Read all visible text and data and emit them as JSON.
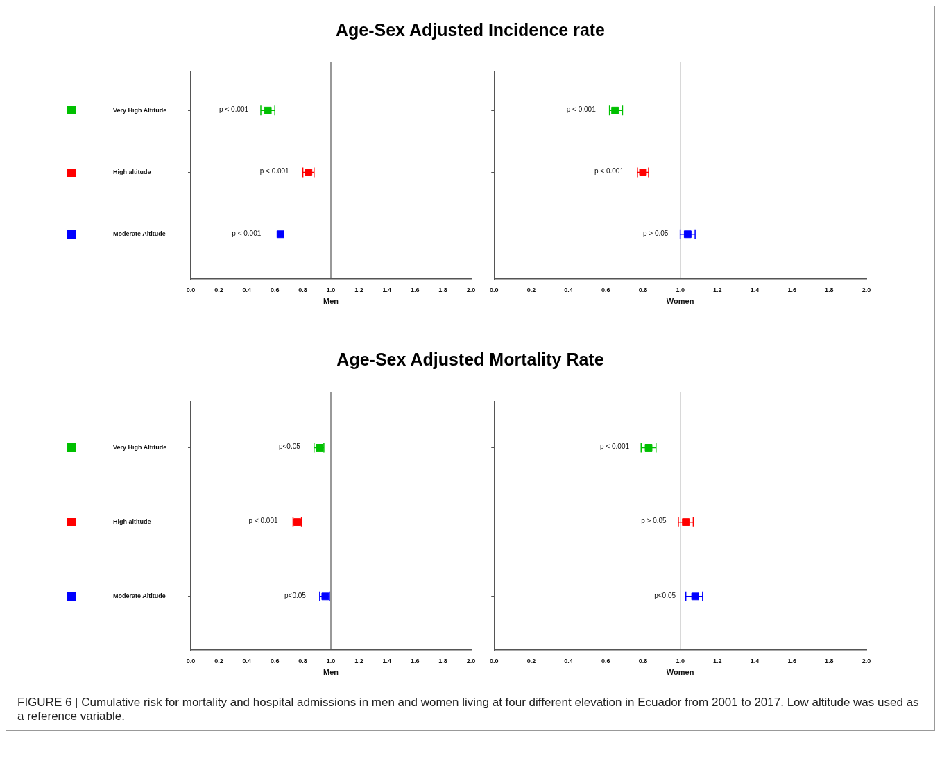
{
  "chart_data": [
    {
      "type": "scatter",
      "orientation": "horizontal",
      "title": "Age-Sex Adjusted Incidence rate",
      "xlabel": "Men",
      "categories": [
        "Very High Altitude",
        "High altitude",
        "Moderate Altitude"
      ],
      "values": [
        0.55,
        0.84,
        0.64
      ],
      "colors": [
        "#00c000",
        "#ff0000",
        "#0000ff"
      ],
      "errors": [
        [
          0.5,
          0.6
        ],
        [
          0.8,
          0.88
        ],
        null
      ],
      "marker": "square",
      "xlim": [
        0,
        2
      ],
      "xticks": [
        {
          "value": 0,
          "label": "0.0"
        },
        {
          "value": 0.2,
          "label": "0.2"
        },
        {
          "value": 0.4,
          "label": "0.4"
        },
        {
          "value": 0.6,
          "label": "0.6"
        },
        {
          "value": 0.8,
          "label": "0.8"
        },
        {
          "value": 1,
          "label": "1.0"
        },
        {
          "value": 1.2,
          "label": "1.2"
        },
        {
          "value": 1.4,
          "label": "1.4"
        },
        {
          "value": 1.6,
          "label": "1.6"
        },
        {
          "value": 1.8,
          "label": "1.8"
        },
        {
          "value": 2,
          "label": "2.0"
        }
      ],
      "ref_lines": [
        {
          "axis": "x",
          "value": 1,
          "color": "#555555"
        }
      ],
      "annotations": [
        {
          "text": "p < 0.001",
          "x": 0.55
        },
        {
          "text": "p < 0.001",
          "x": 0.84
        },
        {
          "text": "p < 0.001",
          "x": 0.64
        }
      ]
    },
    {
      "type": "scatter",
      "orientation": "horizontal",
      "xlabel": "Women",
      "categories": [
        null,
        null,
        null
      ],
      "values": [
        0.65,
        0.8,
        1.04
      ],
      "colors": [
        "#00c000",
        "#ff0000",
        "#0000ff"
      ],
      "errors": [
        [
          0.62,
          0.69
        ],
        [
          0.77,
          0.83
        ],
        [
          1.0,
          1.08
        ]
      ],
      "marker": "square",
      "xlim": [
        0,
        2
      ],
      "xticks": [
        {
          "value": 0,
          "label": "0.0"
        },
        {
          "value": 0.2,
          "label": "0.2"
        },
        {
          "value": 0.4,
          "label": "0.4"
        },
        {
          "value": 0.6,
          "label": "0.6"
        },
        {
          "value": 0.8,
          "label": "0.8"
        },
        {
          "value": 1,
          "label": "1.0"
        },
        {
          "value": 1.2,
          "label": "1.2"
        },
        {
          "value": 1.4,
          "label": "1.4"
        },
        {
          "value": 1.6,
          "label": "1.6"
        },
        {
          "value": 1.8,
          "label": "1.8"
        },
        {
          "value": 2,
          "label": "2.0"
        }
      ],
      "ref_lines": [
        {
          "axis": "x",
          "value": 1,
          "color": "#555555"
        }
      ],
      "tick_labels": "x",
      "annotations": [
        {
          "text": "p < 0.001",
          "x": 0.65
        },
        {
          "text": "p < 0.001",
          "x": 0.8
        },
        {
          "text": "p > 0.05",
          "x": 1.04
        }
      ]
    },
    {
      "type": "scatter",
      "orientation": "horizontal",
      "title": "Age-Sex Adjusted Mortality Rate",
      "xlabel": "Men",
      "categories": [
        "Very High Altitude",
        "High altitude",
        "Moderate Altitude"
      ],
      "values": [
        0.92,
        0.76,
        0.96
      ],
      "colors": [
        "#00c000",
        "#ff0000",
        "#0000ff"
      ],
      "errors": [
        [
          0.88,
          0.95
        ],
        [
          0.73,
          0.79
        ],
        [
          0.92,
          0.99
        ]
      ],
      "marker": "square",
      "xlim": [
        0,
        2
      ],
      "xticks": [
        {
          "value": 0,
          "label": "0.0"
        },
        {
          "value": 0.2,
          "label": "0.2"
        },
        {
          "value": 0.4,
          "label": "0.4"
        },
        {
          "value": 0.6,
          "label": "0.6"
        },
        {
          "value": 0.8,
          "label": "0.8"
        },
        {
          "value": 1,
          "label": "1.0"
        },
        {
          "value": 1.2,
          "label": "1.2"
        },
        {
          "value": 1.4,
          "label": "1.4"
        },
        {
          "value": 1.6,
          "label": "1.6"
        },
        {
          "value": 1.8,
          "label": "1.8"
        },
        {
          "value": 2,
          "label": "2.0"
        }
      ],
      "ref_lines": [
        {
          "axis": "x",
          "value": 1,
          "color": "#555555"
        }
      ],
      "annotations": [
        {
          "text": "p<0.05",
          "x": 0.92
        },
        {
          "text": "p < 0.001",
          "x": 0.76
        },
        {
          "text": "p<0.05",
          "x": 0.96
        }
      ]
    },
    {
      "type": "scatter",
      "orientation": "horizontal",
      "xlabel": "Women",
      "categories": [
        null,
        null,
        null
      ],
      "values": [
        0.83,
        1.03,
        1.08
      ],
      "colors": [
        "#00c000",
        "#ff0000",
        "#0000ff"
      ],
      "errors": [
        [
          0.79,
          0.87
        ],
        [
          0.99,
          1.07
        ],
        [
          1.03,
          1.12
        ]
      ],
      "marker": "square",
      "xlim": [
        0,
        2
      ],
      "xticks": [
        {
          "value": 0,
          "label": "0.0"
        },
        {
          "value": 0.2,
          "label": "0.2"
        },
        {
          "value": 0.4,
          "label": "0.4"
        },
        {
          "value": 0.6,
          "label": "0.6"
        },
        {
          "value": 0.8,
          "label": "0.8"
        },
        {
          "value": 1,
          "label": "1.0"
        },
        {
          "value": 1.2,
          "label": "1.2"
        },
        {
          "value": 1.4,
          "label": "1.4"
        },
        {
          "value": 1.6,
          "label": "1.6"
        },
        {
          "value": 1.8,
          "label": "1.8"
        },
        {
          "value": 2,
          "label": "2.0"
        }
      ],
      "ref_lines": [
        {
          "axis": "x",
          "value": 1,
          "color": "#555555"
        }
      ],
      "tick_labels": "x",
      "annotations": [
        {
          "text": "p < 0.001",
          "x": 0.83
        },
        {
          "text": "p > 0.05",
          "x": 1.03
        },
        {
          "text": "p<0.05",
          "x": 1.08
        },
        "FIGURE 6 | Cumulative risk for mortality and hospital admissions in men and women living at four different elevation in Ecuador from 2001 to 2017. Low altitude was used as a reference variable."
      ]
    }
  ]
}
